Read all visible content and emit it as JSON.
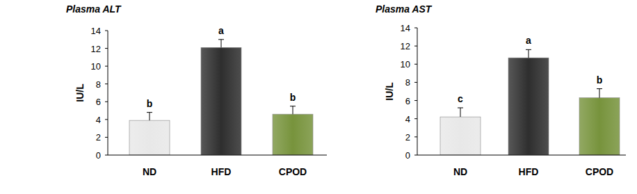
{
  "chart_data": [
    {
      "type": "bar",
      "title": "Plasma ALT",
      "y_label": "IU/L",
      "categories": [
        "ND",
        "HFD",
        "CPOD"
      ],
      "values": [
        3.9,
        12.1,
        4.6
      ],
      "errors": [
        0.9,
        0.9,
        0.9
      ],
      "annotations": [
        "b",
        "a",
        "b"
      ],
      "colors": [
        "#e8e8e8",
        "#2e2e2e",
        "#77933c"
      ],
      "ylim": [
        0,
        14
      ],
      "yticks": [
        0,
        2,
        4,
        6,
        8,
        10,
        12,
        14
      ],
      "grid": false
    },
    {
      "type": "bar",
      "title": "Plasma AST",
      "y_label": "IU/L",
      "categories": [
        "ND",
        "HFD",
        "CPOD"
      ],
      "values": [
        4.2,
        10.7,
        6.3
      ],
      "errors": [
        1.0,
        0.9,
        1.0
      ],
      "annotations": [
        "c",
        "a",
        "b"
      ],
      "colors": [
        "#e8e8e8",
        "#2e2e2e",
        "#77933c"
      ],
      "ylim": [
        0,
        14
      ],
      "yticks": [
        0,
        2,
        4,
        6,
        8,
        10,
        12,
        14
      ],
      "grid": false
    }
  ]
}
